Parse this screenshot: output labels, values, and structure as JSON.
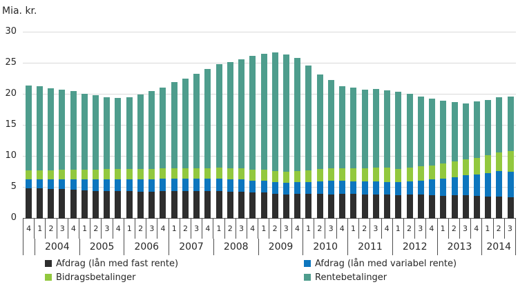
{
  "title": "Mia. kr.",
  "legend": {
    "items": [
      {
        "label": "Afdrag (lån med fast rente)",
        "color": "#2e2e2e"
      },
      {
        "label": "Afdrag (lån med variabel rente)",
        "color": "#0d76be"
      },
      {
        "label": "Bidragsbetalinger",
        "color": "#92c83e"
      },
      {
        "label": "Rentebetalinger",
        "color": "#4e9d8d"
      }
    ]
  },
  "colors": {
    "grid": "#d9d9d9",
    "axis": "#595959",
    "text": "#262626"
  },
  "chart_data": {
    "type": "bar",
    "stacked": true,
    "title": "Mia. kr.",
    "ylabel": "Mia. kr.",
    "xlabel": "",
    "ylim": [
      0,
      30
    ],
    "yticks": [
      0,
      5,
      10,
      15,
      20,
      25,
      30
    ],
    "grid": true,
    "legend_position": "bottom",
    "x_quarters": [
      "4",
      "1",
      "2",
      "3",
      "4",
      "1",
      "2",
      "3",
      "4",
      "1",
      "2",
      "3",
      "4",
      "1",
      "2",
      "3",
      "4",
      "1",
      "2",
      "3",
      "4",
      "1",
      "2",
      "3",
      "4",
      "1",
      "2",
      "3",
      "4",
      "1",
      "2",
      "3",
      "4",
      "1",
      "2",
      "3",
      "4",
      "1",
      "2",
      "3",
      "4",
      "1",
      "2",
      "3"
    ],
    "year_groups": [
      {
        "label": "",
        "span": 1
      },
      {
        "label": "2004",
        "span": 4
      },
      {
        "label": "2005",
        "span": 4
      },
      {
        "label": "2006",
        "span": 4
      },
      {
        "label": "2007",
        "span": 4
      },
      {
        "label": "2008",
        "span": 4
      },
      {
        "label": "2009",
        "span": 4
      },
      {
        "label": "2010",
        "span": 4
      },
      {
        "label": "2011",
        "span": 4
      },
      {
        "label": "2012",
        "span": 4
      },
      {
        "label": "2013",
        "span": 4
      },
      {
        "label": "2014",
        "span": 3
      }
    ],
    "series": [
      {
        "name": "Afdrag (lån med fast rente)",
        "color": "#2e2e2e",
        "values": [
          4.9,
          4.9,
          4.8,
          4.8,
          4.7,
          4.6,
          4.5,
          4.5,
          4.4,
          4.4,
          4.3,
          4.3,
          4.4,
          4.4,
          4.4,
          4.4,
          4.4,
          4.4,
          4.3,
          4.3,
          4.2,
          4.2,
          4.0,
          3.9,
          4.0,
          4.0,
          4.0,
          3.9,
          4.0,
          4.0,
          3.9,
          3.9,
          3.9,
          3.8,
          3.9,
          3.9,
          3.8,
          3.7,
          3.8,
          3.8,
          3.7,
          3.6,
          3.6,
          3.4
        ]
      },
      {
        "name": "Afdrag (lån med variabel rente)",
        "color": "#0d76be",
        "values": [
          1.4,
          1.4,
          1.5,
          1.5,
          1.6,
          1.7,
          1.8,
          1.8,
          1.9,
          1.9,
          2.0,
          2.0,
          2.0,
          2.0,
          2.0,
          2.0,
          2.0,
          2.0,
          2.0,
          2.0,
          1.9,
          1.9,
          1.9,
          1.9,
          1.9,
          1.9,
          2.0,
          2.2,
          2.1,
          2.0,
          2.1,
          2.1,
          2.0,
          2.1,
          2.1,
          2.2,
          2.5,
          2.7,
          2.9,
          3.2,
          3.4,
          3.7,
          4.1,
          4.2
        ]
      },
      {
        "name": "Bidragsbetalinger",
        "color": "#92c83e",
        "values": [
          1.5,
          1.5,
          1.5,
          1.6,
          1.6,
          1.6,
          1.6,
          1.7,
          1.7,
          1.7,
          1.7,
          1.7,
          1.7,
          1.7,
          1.7,
          1.7,
          1.7,
          1.8,
          1.8,
          1.8,
          1.8,
          1.8,
          1.8,
          1.8,
          1.8,
          1.9,
          2.0,
          2.0,
          2.0,
          2.1,
          2.1,
          2.2,
          2.3,
          2.1,
          2.2,
          2.3,
          2.3,
          2.5,
          2.5,
          2.6,
          2.7,
          2.9,
          3.0,
          3.3
        ]
      },
      {
        "name": "Rentebetalinger",
        "color": "#4e9d8d",
        "values": [
          13.6,
          13.5,
          13.2,
          12.9,
          12.7,
          12.2,
          12.0,
          11.6,
          11.4,
          11.6,
          12.0,
          12.6,
          13.0,
          13.9,
          14.5,
          15.2,
          16.0,
          16.7,
          17.1,
          17.6,
          18.3,
          18.7,
          19.1,
          18.8,
          18.2,
          16.9,
          15.2,
          14.2,
          13.2,
          13.0,
          12.7,
          12.7,
          12.5,
          12.4,
          11.9,
          11.3,
          10.7,
          10.1,
          9.6,
          9.0,
          9.1,
          8.9,
          8.9,
          8.8
        ]
      }
    ]
  }
}
